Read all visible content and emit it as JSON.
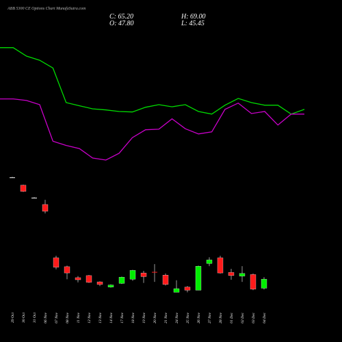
{
  "chart_data": {
    "type": "candlestick",
    "title": "ABB 5300 CE Options Chart MunafaSutra.com",
    "ohlc_text": {
      "close": "C: 65.20",
      "high": "H: 69.00",
      "open": "O: 47.80",
      "low": "L: 45.45"
    },
    "categories": [
      "29 Oct",
      "30 Oct",
      "31 Oct",
      "06 Nov",
      "07 Nov",
      "08 Nov",
      "11 Nov",
      "12 Nov",
      "13 Nov",
      "14 Nov",
      "17 Nov",
      "18 Nov",
      "19 Nov",
      "20 Nov",
      "21 Nov",
      "24 Nov",
      "25 Nov",
      "26 Nov",
      "27 Nov",
      "28 Nov",
      "01 Dec",
      "02 Dec",
      "03 Dec",
      "04 Dec"
    ],
    "open": [
      260,
      245,
      221,
      208,
      106,
      89,
      68,
      72,
      60,
      50,
      57,
      65,
      77,
      79,
      73,
      40,
      50,
      44,
      95,
      106,
      78,
      71,
      74,
      47.8
    ],
    "high": [
      261,
      246,
      222,
      217,
      110,
      91,
      71,
      73,
      61,
      55,
      70,
      83,
      81,
      94,
      76,
      63,
      52,
      91,
      107,
      110,
      85,
      90,
      76,
      69.0
    ],
    "low": [
      259,
      232,
      220,
      191,
      84,
      65,
      59,
      58,
      52,
      49,
      56,
      62,
      58,
      60,
      53,
      40,
      40,
      44,
      90,
      76,
      64,
      60,
      44,
      45.45
    ],
    "close": [
      260,
      233,
      221,
      195,
      88,
      77,
      64,
      59,
      55,
      54,
      69,
      82,
      70,
      78,
      55,
      47,
      44,
      90,
      102,
      77,
      72,
      76,
      46,
      65.2
    ],
    "up_color": "#00ee00",
    "down_color": "#ff1a1a",
    "series": [
      {
        "color": "#00dd00",
        "values": [
          508,
          508,
          492,
          484,
          469,
          403,
          397,
          391,
          389,
          386,
          385,
          394,
          399,
          395,
          399,
          386,
          381,
          398,
          411,
          403,
          398,
          398,
          381,
          390
        ]
      },
      {
        "color": "#cc00cc",
        "values": [
          410,
          410,
          407,
          399,
          329,
          321,
          315,
          297,
          293,
          306,
          336,
          351,
          352,
          372,
          353,
          343,
          347,
          390,
          402,
          382,
          386,
          360,
          381,
          381
        ]
      }
    ],
    "ylim": [
      30,
      560
    ]
  }
}
